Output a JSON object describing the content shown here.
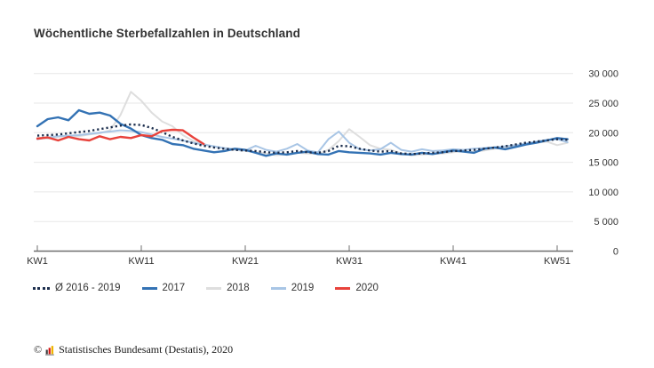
{
  "chart_data": {
    "type": "line",
    "title": "Wöchentliche Sterbefallzahlen in Deutschland",
    "x_unit": "Kalenderwoche",
    "x_tick_labels": [
      "KW1",
      "KW11",
      "KW21",
      "KW31",
      "KW41",
      "KW51"
    ],
    "x_tick_weeks": [
      1,
      11,
      21,
      31,
      41,
      51
    ],
    "x_range_weeks": [
      1,
      52
    ],
    "y_ticks": [
      0,
      5000,
      10000,
      15000,
      20000,
      25000,
      30000
    ],
    "y_tick_labels": [
      "0",
      "5 000",
      "10 000",
      "15 000",
      "20 000",
      "25 000",
      "30 000"
    ],
    "ylim": [
      0,
      30000
    ],
    "grid": "horizontal-only",
    "legend_position": "bottom-left",
    "y_axis_side": "right",
    "series": [
      {
        "name": "Ø 2016 - 2019",
        "color": "#1c2e4d",
        "style": "dotted",
        "values": [
          19500,
          19600,
          19700,
          19900,
          20100,
          20300,
          20600,
          20900,
          21200,
          21400,
          21300,
          20800,
          20100,
          19300,
          18700,
          18200,
          17800,
          17500,
          17300,
          17100,
          17000,
          16900,
          16700,
          16600,
          16700,
          16900,
          16700,
          16600,
          16900,
          17800,
          17700,
          17300,
          17000,
          16800,
          16900,
          16500,
          16400,
          16500,
          16600,
          16700,
          16900,
          17000,
          17100,
          17300,
          17500,
          17700,
          18000,
          18300,
          18500,
          18700,
          18900,
          18800
        ]
      },
      {
        "name": "2017",
        "color": "#3372b4",
        "style": "solid",
        "values": [
          21100,
          22300,
          22600,
          22100,
          23800,
          23200,
          23400,
          22900,
          21500,
          20700,
          19600,
          19100,
          18800,
          18100,
          17900,
          17300,
          17000,
          16700,
          16900,
          17300,
          17100,
          16600,
          16100,
          16500,
          16300,
          16600,
          16800,
          16400,
          16300,
          16900,
          16700,
          16600,
          16500,
          16300,
          16600,
          16400,
          16300,
          16600,
          16400,
          16700,
          17000,
          16800,
          16600,
          17300,
          17500,
          17200,
          17600,
          18000,
          18300,
          18700,
          19100,
          18900
        ]
      },
      {
        "name": "2018",
        "color": "#dedede",
        "style": "solid",
        "values": [
          19200,
          19000,
          19300,
          19500,
          19400,
          19700,
          19900,
          20400,
          23000,
          26900,
          25400,
          23400,
          21900,
          21100,
          19600,
          18600,
          18100,
          17600,
          17300,
          17100,
          16900,
          16700,
          16500,
          16200,
          16400,
          16600,
          16500,
          16400,
          17100,
          18600,
          20600,
          19300,
          17900,
          17300,
          17100,
          16500,
          16200,
          16300,
          16400,
          16500,
          16700,
          16900,
          16800,
          17000,
          17300,
          17500,
          17700,
          18100,
          18300,
          18500,
          17900,
          18300
        ]
      },
      {
        "name": "2019",
        "color": "#a8c5e5",
        "style": "solid",
        "values": [
          18900,
          19200,
          19400,
          19500,
          19600,
          19800,
          20000,
          20200,
          20400,
          20300,
          20100,
          19700,
          19300,
          19000,
          18700,
          18300,
          18000,
          17700,
          17400,
          17200,
          17000,
          17800,
          17100,
          16800,
          17300,
          18100,
          17000,
          16700,
          18900,
          20200,
          18300,
          17200,
          17000,
          17200,
          18300,
          17100,
          16800,
          17200,
          16900,
          17000,
          17200,
          17100,
          17300,
          17400,
          17500,
          17700,
          17900,
          18200,
          18500,
          18800,
          18900,
          18400
        ]
      },
      {
        "name": "2020",
        "color": "#e8423b",
        "style": "solid",
        "values": [
          19000,
          19200,
          18700,
          19300,
          18900,
          18700,
          19400,
          18900,
          19300,
          19100,
          19600,
          19400,
          20300,
          20500,
          20400,
          19200,
          18100
        ]
      }
    ]
  },
  "legend": {
    "items": [
      "Ø 2016 - 2019",
      "2017",
      "2018",
      "2019",
      "2020"
    ]
  },
  "footer": {
    "symbol": "©",
    "text": "Statistisches Bundesamt (Destatis), 2020",
    "logo_colors": {
      "bar1": "#3c3c3c",
      "bar2": "#d40f0f",
      "bar3": "#f0b400",
      "baseline": "#9a9a9a"
    }
  },
  "colors": {
    "grid": "#e7e7e7",
    "axis": "#6f6f6f",
    "label_text": "#333333",
    "title_text": "#333333"
  }
}
